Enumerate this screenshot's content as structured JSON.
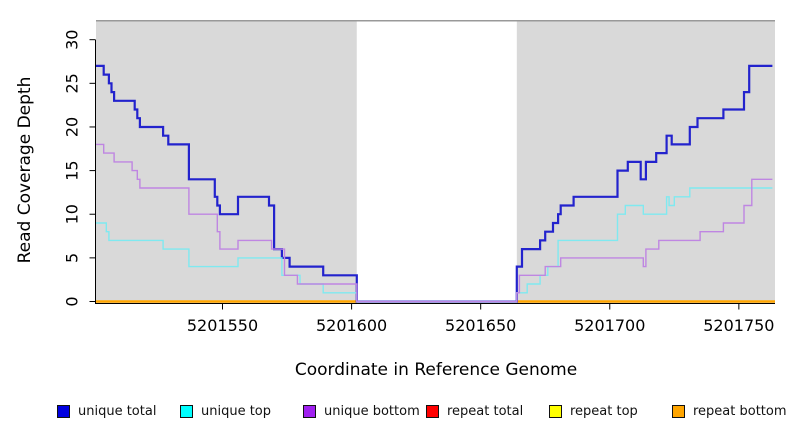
{
  "chart_data": {
    "type": "line",
    "subtype": "step-coverage",
    "title": "",
    "xlabel": "Coordinate in Reference Genome",
    "ylabel": "Read Coverage Depth",
    "xlim": [
      5201501,
      5201764
    ],
    "ylim": [
      0,
      32.3
    ],
    "x_ticks": [
      5201550,
      5201600,
      5201650,
      5201700,
      5201750
    ],
    "y_ticks": [
      0,
      5,
      10,
      15,
      20,
      25,
      30
    ],
    "grid": false,
    "panel_bg": "#d9d9d9",
    "panel_top_border": "#999999",
    "axis_color": "#000000",
    "gap_region": {
      "start": 5201602,
      "end": 5201664,
      "color": "#ffffff"
    },
    "series": [
      {
        "name": "repeat total",
        "color": "#dd0000",
        "width": 2,
        "segments": [
          {
            "points": [
              [
                5201501,
                0
              ]
            ],
            "end": 5201602
          },
          {
            "points": [
              [
                5201664,
                0
              ]
            ],
            "end": 5201764
          }
        ]
      },
      {
        "name": "repeat top",
        "color": "#ffff00",
        "width": 2,
        "segments": [
          {
            "points": [
              [
                5201501,
                0
              ]
            ],
            "end": 5201602
          },
          {
            "points": [
              [
                5201664,
                0
              ]
            ],
            "end": 5201764
          }
        ]
      },
      {
        "name": "repeat bottom",
        "color": "#ffa500",
        "width": 2.4,
        "segments": [
          {
            "points": [
              [
                5201501,
                0
              ]
            ],
            "end": 5201602
          },
          {
            "points": [
              [
                5201664,
                0
              ]
            ],
            "end": 5201764
          }
        ]
      },
      {
        "name": "unique total",
        "color": "#2323cd",
        "width": 2.2,
        "segments": [
          {
            "points": [
              [
                5201501,
                27
              ],
              [
                5201504,
                26
              ],
              [
                5201506,
                25
              ],
              [
                5201507,
                24
              ],
              [
                5201508,
                23
              ],
              [
                5201516,
                22
              ],
              [
                5201517,
                21
              ],
              [
                5201518,
                20
              ],
              [
                5201527,
                19
              ],
              [
                5201529,
                18
              ],
              [
                5201537,
                14
              ],
              [
                5201547,
                12
              ],
              [
                5201548,
                11
              ],
              [
                5201549,
                10
              ],
              [
                5201556,
                12
              ],
              [
                5201568,
                11
              ],
              [
                5201570,
                6
              ],
              [
                5201573,
                5
              ],
              [
                5201576,
                4
              ],
              [
                5201589,
                3
              ],
              [
                5201602,
                0
              ],
              [
                5201664,
                4
              ],
              [
                5201666,
                6
              ],
              [
                5201673,
                7
              ],
              [
                5201675,
                8
              ],
              [
                5201678,
                9
              ],
              [
                5201680,
                10
              ],
              [
                5201681,
                11
              ],
              [
                5201686,
                12
              ],
              [
                5201703,
                15
              ],
              [
                5201707,
                16
              ],
              [
                5201712,
                14
              ],
              [
                5201714,
                16
              ],
              [
                5201718,
                17
              ],
              [
                5201722,
                19
              ],
              [
                5201724,
                18
              ],
              [
                5201731,
                20
              ],
              [
                5201734,
                21
              ],
              [
                5201744,
                22
              ],
              [
                5201752,
                24
              ],
              [
                5201754,
                27
              ]
            ],
            "end": 5201763
          }
        ]
      },
      {
        "name": "unique top",
        "color": "#7fe9f0",
        "width": 1.4,
        "segments": [
          {
            "points": [
              [
                5201501,
                9
              ],
              [
                5201505,
                8
              ],
              [
                5201506,
                7
              ],
              [
                5201527,
                6
              ],
              [
                5201537,
                4
              ],
              [
                5201556,
                5
              ],
              [
                5201573,
                3
              ],
              [
                5201580,
                2
              ],
              [
                5201589,
                1
              ],
              [
                5201602,
                0
              ],
              [
                5201664,
                1
              ],
              [
                5201668,
                2
              ],
              [
                5201673,
                3
              ],
              [
                5201676,
                4
              ],
              [
                5201680,
                7
              ],
              [
                5201703,
                10
              ],
              [
                5201706,
                11
              ],
              [
                5201713,
                10
              ],
              [
                5201722,
                12
              ],
              [
                5201723,
                11
              ],
              [
                5201725,
                12
              ],
              [
                5201731,
                13
              ]
            ],
            "end": 5201763
          }
        ]
      },
      {
        "name": "unique bottom",
        "color": "#bf86e2",
        "width": 1.4,
        "segments": [
          {
            "points": [
              [
                5201501,
                18
              ],
              [
                5201504,
                17
              ],
              [
                5201508,
                16
              ],
              [
                5201515,
                15
              ],
              [
                5201517,
                14
              ],
              [
                5201518,
                13
              ],
              [
                5201537,
                10
              ],
              [
                5201548,
                8
              ],
              [
                5201549,
                6
              ],
              [
                5201556,
                7
              ],
              [
                5201569,
                6
              ],
              [
                5201574,
                3
              ],
              [
                5201579,
                2
              ],
              [
                5201602,
                0
              ],
              [
                5201664,
                1
              ],
              [
                5201665,
                3
              ],
              [
                5201675,
                4
              ],
              [
                5201681,
                5
              ],
              [
                5201713,
                4
              ],
              [
                5201714,
                6
              ],
              [
                5201719,
                7
              ],
              [
                5201735,
                8
              ],
              [
                5201744,
                9
              ],
              [
                5201752,
                11
              ],
              [
                5201755,
                14
              ]
            ],
            "end": 5201763
          }
        ]
      }
    ]
  },
  "legend": {
    "items": [
      {
        "label": "unique total",
        "color": "#0000e0"
      },
      {
        "label": "unique top",
        "color": "#00ffff"
      },
      {
        "label": "unique bottom",
        "color": "#a020f0"
      },
      {
        "label": "repeat total",
        "color": "#ff0000"
      },
      {
        "label": "repeat top",
        "color": "#ffff00"
      },
      {
        "label": "repeat bottom",
        "color": "#ffa500"
      }
    ]
  }
}
